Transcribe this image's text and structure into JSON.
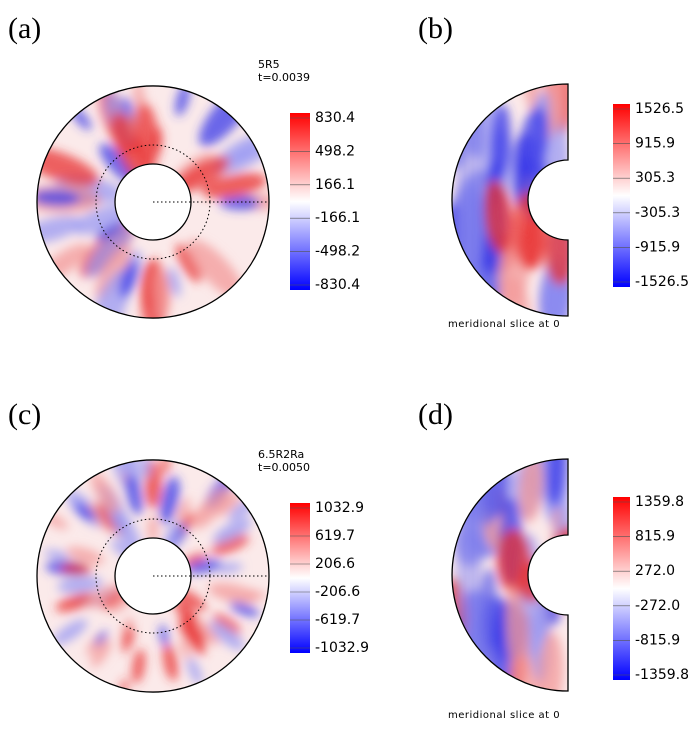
{
  "panels": [
    {
      "label": "(a)",
      "title": "5R5",
      "time": "t=0.0039",
      "colorbar": [
        "830.4",
        "498.2",
        "166.1",
        "-166.1",
        "-498.2",
        "-830.4"
      ]
    },
    {
      "label": "(b)",
      "colorbar": [
        "1526.5",
        "915.9",
        "305.3",
        "-305.3",
        "-915.9",
        "-1526.5"
      ],
      "caption": "meridional slice at 0"
    },
    {
      "label": "(c)",
      "title": "6.5R2Ra",
      "time": "t=0.0050",
      "colorbar": [
        "1032.9",
        "619.7",
        "206.6",
        "-206.6",
        "-619.7",
        "-1032.9"
      ]
    },
    {
      "label": "(d)",
      "colorbar": [
        "1359.8",
        "815.9",
        "272.0",
        "-272.0",
        "-815.9",
        "-1359.8"
      ],
      "caption": "meridional slice at 0"
    }
  ]
}
